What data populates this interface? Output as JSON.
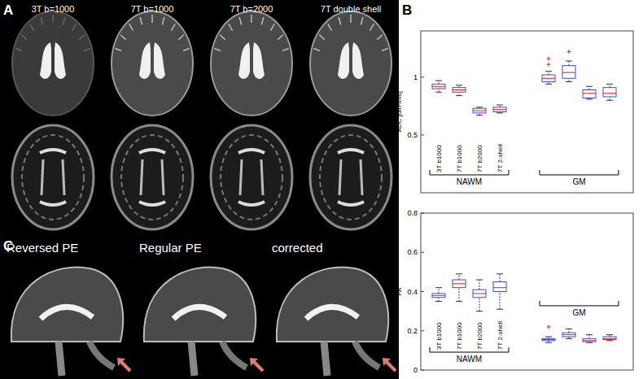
{
  "panels": {
    "A": {
      "label": "A",
      "titles": [
        "3T b=1000",
        "7T b=1000",
        "7T b=2000",
        "7T double shell"
      ]
    },
    "B": {
      "label": "B"
    },
    "C": {
      "label": "C",
      "titles": [
        "Reversed PE",
        "Regular PE",
        "corrected"
      ]
    }
  },
  "chart_data": [
    {
      "type": "box",
      "y_label": "ADC [um²/ms]",
      "categories": [
        "3T b1000",
        "7T b1000",
        "7T b2000",
        "7T 2-shell",
        null,
        null,
        null,
        null
      ],
      "groups": [
        {
          "name": "NAWM",
          "count": 4
        },
        {
          "name": "GM",
          "count": 4
        }
      ],
      "color": "#3b4fd8",
      "ylim": [
        0,
        1.4
      ],
      "yticks": [
        0.5,
        1
      ],
      "boxes": [
        {
          "whisker_low": 0.87,
          "q1": 0.9,
          "median": 0.92,
          "q3": 0.94,
          "whisker_high": 0.97,
          "outliers": []
        },
        {
          "whisker_low": 0.84,
          "q1": 0.87,
          "median": 0.89,
          "q3": 0.91,
          "whisker_high": 0.93,
          "outliers": []
        },
        {
          "whisker_low": 0.67,
          "q1": 0.69,
          "median": 0.71,
          "q3": 0.73,
          "whisker_high": 0.74,
          "outliers": []
        },
        {
          "whisker_low": 0.69,
          "q1": 0.7,
          "median": 0.72,
          "q3": 0.74,
          "whisker_high": 0.76,
          "outliers": []
        },
        {
          "whisker_low": 0.94,
          "q1": 0.96,
          "median": 0.99,
          "q3": 1.02,
          "whisker_high": 1.05,
          "outliers": [
            1.11,
            1.16
          ]
        },
        {
          "whisker_low": 0.96,
          "q1": 0.99,
          "median": 1.04,
          "q3": 1.1,
          "whisker_high": 1.14,
          "outliers": [
            1.22
          ]
        },
        {
          "whisker_low": 0.81,
          "q1": 0.82,
          "median": 0.86,
          "q3": 0.89,
          "whisker_high": 0.92,
          "outliers": []
        },
        {
          "whisker_low": 0.8,
          "q1": 0.83,
          "median": 0.86,
          "q3": 0.91,
          "whisker_high": 0.94,
          "outliers": []
        }
      ]
    },
    {
      "type": "box",
      "y_label": "FA",
      "categories": [
        "3T b1000",
        "7T b1000",
        "7T b2000",
        "7T 2-shell",
        null,
        null,
        null,
        null
      ],
      "groups": [
        {
          "name": "NAWM",
          "count": 4
        },
        {
          "name": "GM",
          "count": 4
        }
      ],
      "color": "#3b4fd8",
      "ylim": [
        0,
        0.8
      ],
      "yticks": [
        0,
        0.2,
        0.4,
        0.6,
        0.8
      ],
      "boxes": [
        {
          "whisker_low": 0.35,
          "q1": 0.37,
          "median": 0.38,
          "q3": 0.39,
          "whisker_high": 0.42,
          "outliers": []
        },
        {
          "whisker_low": 0.35,
          "q1": 0.42,
          "median": 0.44,
          "q3": 0.46,
          "whisker_high": 0.49,
          "outliers": []
        },
        {
          "whisker_low": 0.3,
          "q1": 0.37,
          "median": 0.39,
          "q3": 0.41,
          "whisker_high": 0.46,
          "outliers": []
        },
        {
          "whisker_low": 0.31,
          "q1": 0.4,
          "median": 0.42,
          "q3": 0.45,
          "whisker_high": 0.49,
          "outliers": []
        },
        {
          "whisker_low": 0.14,
          "q1": 0.15,
          "median": 0.155,
          "q3": 0.16,
          "whisker_high": 0.17,
          "outliers": [
            0.22
          ]
        },
        {
          "whisker_low": 0.16,
          "q1": 0.17,
          "median": 0.18,
          "q3": 0.19,
          "whisker_high": 0.21,
          "outliers": []
        },
        {
          "whisker_low": 0.14,
          "q1": 0.145,
          "median": 0.15,
          "q3": 0.16,
          "whisker_high": 0.18,
          "outliers": []
        },
        {
          "whisker_low": 0.15,
          "q1": 0.155,
          "median": 0.16,
          "q3": 0.17,
          "whisker_high": 0.18,
          "outliers": []
        }
      ]
    }
  ]
}
